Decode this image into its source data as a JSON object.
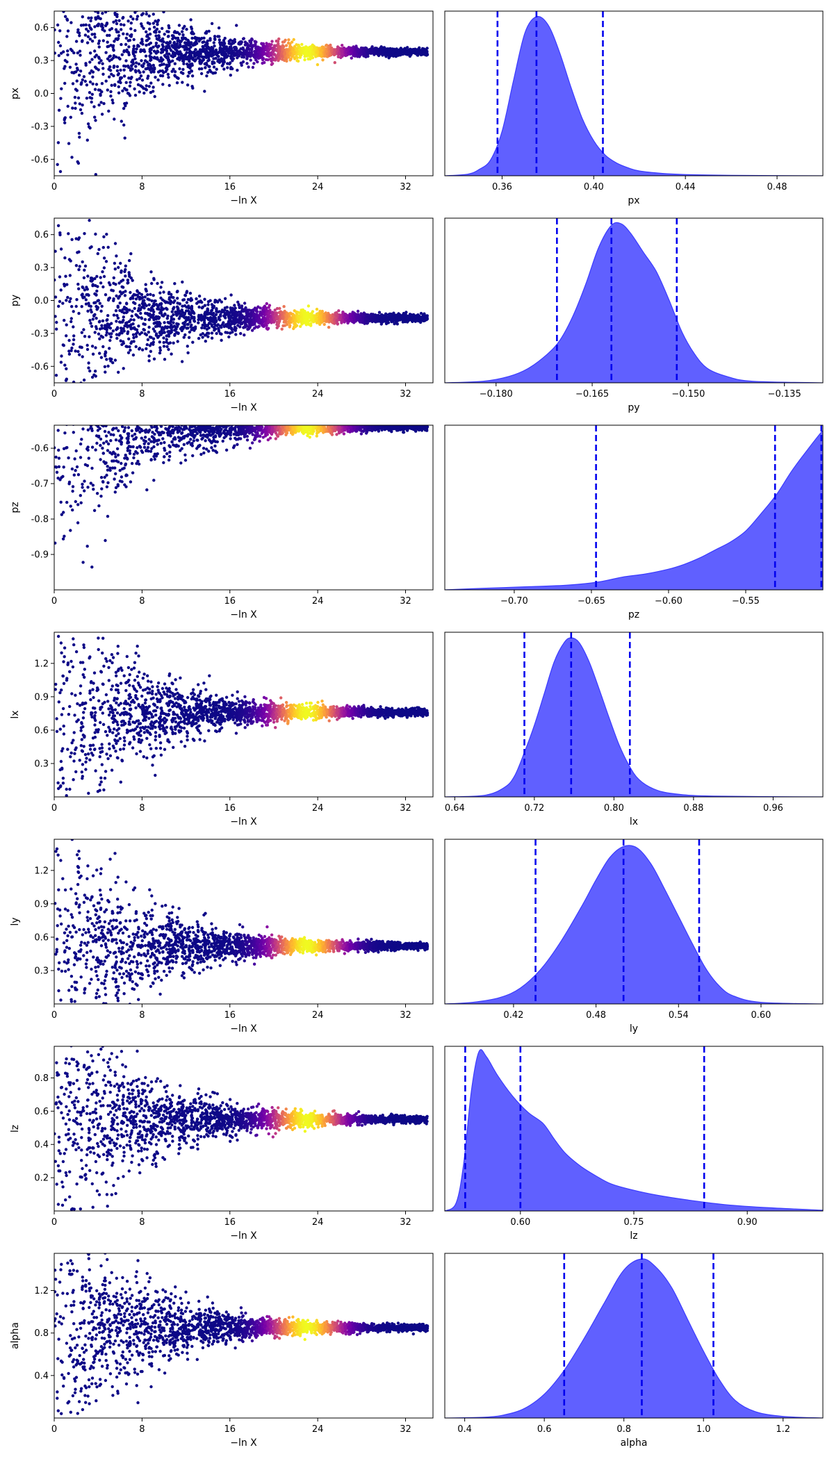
{
  "colors": {
    "kde_fill": "#6060ff",
    "kde_line": "#3a3aff",
    "quantile_line": "#0000ee",
    "colormap": [
      "#0d0887",
      "#46039f",
      "#7201a8",
      "#9c179e",
      "#bd3786",
      "#d8576b",
      "#ed7953",
      "#fb9f3a",
      "#fdca26",
      "#f0f921"
    ]
  },
  "chart_data": [
    {
      "type": "scatter",
      "param": "px",
      "xlabel": "−ln X",
      "ylabel": "px",
      "xlim": [
        0,
        34.5
      ],
      "ylim": [
        -0.75,
        0.75
      ],
      "xticks": [
        "0",
        "8",
        "16",
        "24",
        "32"
      ],
      "yticks": [
        "-0.6",
        "-0.3",
        "0.0",
        "0.3",
        "0.6"
      ],
      "converged_value": 0.38,
      "peak_x": 23
    },
    {
      "type": "area",
      "param": "px",
      "xlabel": "px",
      "xlim": [
        0.335,
        0.5
      ],
      "xticks": [
        "0.36",
        "0.40",
        "0.44",
        "0.48"
      ],
      "mode": 0.375,
      "quantiles": [
        0.358,
        0.375,
        0.404
      ],
      "curve_x": [
        0.335,
        0.345,
        0.35,
        0.355,
        0.36,
        0.365,
        0.37,
        0.375,
        0.38,
        0.385,
        0.39,
        0.395,
        0.4,
        0.405,
        0.41,
        0.415,
        0.42,
        0.43,
        0.44,
        0.46,
        0.5
      ],
      "curve_y": [
        0,
        0.01,
        0.04,
        0.1,
        0.28,
        0.6,
        0.9,
        1.0,
        0.95,
        0.78,
        0.56,
        0.36,
        0.22,
        0.13,
        0.08,
        0.05,
        0.03,
        0.015,
        0.008,
        0.003,
        0
      ]
    },
    {
      "type": "scatter",
      "param": "py",
      "xlabel": "−ln X",
      "ylabel": "py",
      "xlim": [
        0,
        34.5
      ],
      "ylim": [
        -0.75,
        0.75
      ],
      "xticks": [
        "0",
        "8",
        "16",
        "24",
        "32"
      ],
      "yticks": [
        "-0.6",
        "-0.3",
        "0.0",
        "0.3",
        "0.6"
      ],
      "converged_value": -0.16,
      "peak_x": 23
    },
    {
      "type": "area",
      "param": "py",
      "xlabel": "py",
      "xlim": [
        -0.188,
        -0.129
      ],
      "xticks": [
        "−0.180",
        "−0.165",
        "−0.150",
        "−0.135"
      ],
      "mode": -0.162,
      "quantiles": [
        -0.1705,
        -0.162,
        -0.1518
      ],
      "curve_x": [
        -0.188,
        -0.182,
        -0.178,
        -0.175,
        -0.172,
        -0.17,
        -0.168,
        -0.166,
        -0.164,
        -0.162,
        -0.1605,
        -0.159,
        -0.157,
        -0.155,
        -0.153,
        -0.151,
        -0.149,
        -0.147,
        -0.144,
        -0.14,
        -0.129
      ],
      "curve_y": [
        0,
        0.01,
        0.04,
        0.09,
        0.18,
        0.27,
        0.42,
        0.62,
        0.85,
        0.99,
        1.0,
        0.94,
        0.82,
        0.7,
        0.52,
        0.32,
        0.18,
        0.09,
        0.04,
        0.01,
        0
      ]
    },
    {
      "type": "scatter",
      "param": "pz",
      "xlabel": "−ln X",
      "ylabel": "pz",
      "xlim": [
        0,
        34.5
      ],
      "ylim": [
        -1.0,
        -0.535
      ],
      "xticks": [
        "0",
        "8",
        "16",
        "24",
        "32"
      ],
      "yticks": [
        "-0.9",
        "-0.8",
        "-0.7",
        "-0.6"
      ],
      "converged_value": -0.54,
      "peak_x": 23
    },
    {
      "type": "area",
      "param": "pz",
      "xlabel": "pz",
      "xlim": [
        -0.745,
        -0.5
      ],
      "xticks": [
        "−0.70",
        "−0.65",
        "−0.60",
        "−0.55"
      ],
      "mode": -0.501,
      "quantiles": [
        -0.647,
        -0.531,
        -0.501
      ],
      "curve_x": [
        -0.745,
        -0.72,
        -0.69,
        -0.665,
        -0.645,
        -0.63,
        -0.615,
        -0.6,
        -0.59,
        -0.58,
        -0.57,
        -0.56,
        -0.55,
        -0.54,
        -0.53,
        -0.52,
        -0.51,
        -0.502,
        -0.5
      ],
      "curve_y": [
        0,
        0.01,
        0.02,
        0.03,
        0.05,
        0.08,
        0.1,
        0.13,
        0.16,
        0.2,
        0.25,
        0.3,
        0.37,
        0.48,
        0.6,
        0.75,
        0.88,
        0.98,
        1.0
      ]
    },
    {
      "type": "scatter",
      "param": "lx",
      "xlabel": "−ln X",
      "ylabel": "lx",
      "xlim": [
        0,
        34.5
      ],
      "ylim": [
        0.0,
        1.48
      ],
      "xticks": [
        "0",
        "8",
        "16",
        "24",
        "32"
      ],
      "yticks": [
        "0.3",
        "0.6",
        "0.9",
        "1.2"
      ],
      "converged_value": 0.76,
      "peak_x": 23
    },
    {
      "type": "area",
      "param": "lx",
      "xlabel": "lx",
      "xlim": [
        0.63,
        1.01
      ],
      "xticks": [
        "0.64",
        "0.72",
        "0.80",
        "0.88",
        "0.96"
      ],
      "mode": 0.757,
      "quantiles": [
        0.71,
        0.757,
        0.816
      ],
      "curve_x": [
        0.63,
        0.67,
        0.69,
        0.7,
        0.71,
        0.72,
        0.73,
        0.74,
        0.75,
        0.757,
        0.765,
        0.775,
        0.785,
        0.795,
        0.805,
        0.815,
        0.825,
        0.84,
        0.86,
        0.9,
        1.01
      ],
      "curve_y": [
        0,
        0.01,
        0.06,
        0.13,
        0.28,
        0.45,
        0.65,
        0.85,
        0.97,
        1.0,
        0.97,
        0.85,
        0.68,
        0.5,
        0.33,
        0.2,
        0.11,
        0.05,
        0.02,
        0.005,
        0
      ]
    },
    {
      "type": "scatter",
      "param": "ly",
      "xlabel": "−ln X",
      "ylabel": "ly",
      "xlim": [
        0,
        34.5
      ],
      "ylim": [
        0.0,
        1.48
      ],
      "xticks": [
        "0",
        "8",
        "16",
        "24",
        "32"
      ],
      "yticks": [
        "0.3",
        "0.6",
        "0.9",
        "1.2"
      ],
      "converged_value": 0.52,
      "peak_x": 23
    },
    {
      "type": "area",
      "param": "ly",
      "xlabel": "ly",
      "xlim": [
        0.37,
        0.645
      ],
      "xticks": [
        "0.42",
        "0.48",
        "0.54",
        "0.60"
      ],
      "mode": 0.5,
      "quantiles": [
        0.436,
        0.5,
        0.555
      ],
      "curve_x": [
        0.37,
        0.39,
        0.41,
        0.425,
        0.44,
        0.455,
        0.47,
        0.48,
        0.49,
        0.5,
        0.51,
        0.52,
        0.53,
        0.54,
        0.55,
        0.56,
        0.57,
        0.58,
        0.6,
        0.645
      ],
      "curve_y": [
        0,
        0.01,
        0.04,
        0.1,
        0.22,
        0.4,
        0.62,
        0.78,
        0.92,
        0.99,
        0.98,
        0.88,
        0.72,
        0.55,
        0.38,
        0.22,
        0.11,
        0.05,
        0.01,
        0
      ]
    },
    {
      "type": "scatter",
      "param": "lz",
      "xlabel": "−ln X",
      "ylabel": "lz",
      "xlim": [
        0,
        34.5
      ],
      "ylim": [
        0.0,
        0.99
      ],
      "xticks": [
        "0",
        "8",
        "16",
        "24",
        "32"
      ],
      "yticks": [
        "0.2",
        "0.4",
        "0.6",
        "0.8"
      ],
      "converged_value": 0.55,
      "peak_x": 23
    },
    {
      "type": "area",
      "param": "lz",
      "xlabel": "lz",
      "xlim": [
        0.5,
        1.0
      ],
      "xticks": [
        "0.60",
        "0.75",
        "0.90"
      ],
      "mode": 0.545,
      "quantiles": [
        0.527,
        0.6,
        0.843
      ],
      "curve_x": [
        0.5,
        0.515,
        0.525,
        0.535,
        0.545,
        0.555,
        0.57,
        0.59,
        0.61,
        0.63,
        0.645,
        0.66,
        0.68,
        0.7,
        0.72,
        0.75,
        0.78,
        0.82,
        0.87,
        0.93,
        1.0
      ],
      "curve_y": [
        0,
        0.05,
        0.3,
        0.75,
        1.0,
        0.97,
        0.85,
        0.72,
        0.62,
        0.55,
        0.45,
        0.36,
        0.28,
        0.22,
        0.17,
        0.13,
        0.1,
        0.07,
        0.04,
        0.02,
        0.005
      ]
    },
    {
      "type": "scatter",
      "param": "alpha",
      "xlabel": "−ln X",
      "ylabel": "alpha",
      "xlim": [
        0,
        34.5
      ],
      "ylim": [
        0.0,
        1.55
      ],
      "xticks": [
        "0",
        "8",
        "16",
        "24",
        "32"
      ],
      "yticks": [
        "0.4",
        "0.8",
        "1.2"
      ],
      "converged_value": 0.85,
      "peak_x": 23
    },
    {
      "type": "area",
      "param": "alpha",
      "xlabel": "alpha",
      "xlim": [
        0.35,
        1.3
      ],
      "xticks": [
        "0.4",
        "0.6",
        "0.8",
        "1.0",
        "1.2"
      ],
      "mode": 0.845,
      "quantiles": [
        0.65,
        0.845,
        1.025
      ],
      "curve_x": [
        0.35,
        0.45,
        0.5,
        0.55,
        0.6,
        0.65,
        0.7,
        0.75,
        0.8,
        0.845,
        0.88,
        0.92,
        0.96,
        1.0,
        1.04,
        1.08,
        1.13,
        1.2,
        1.3
      ],
      "curve_y": [
        0,
        0.005,
        0.02,
        0.06,
        0.15,
        0.3,
        0.5,
        0.72,
        0.93,
        1.0,
        0.95,
        0.82,
        0.62,
        0.42,
        0.24,
        0.11,
        0.04,
        0.01,
        0
      ]
    }
  ]
}
